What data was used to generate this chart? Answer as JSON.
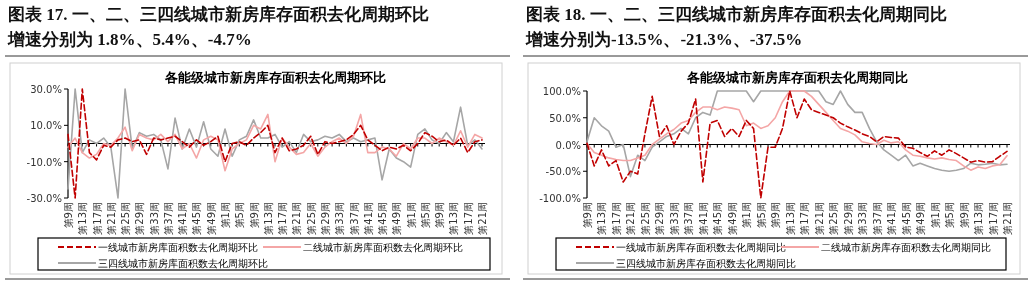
{
  "chart_data": [
    {
      "type": "line",
      "title": "图表 17. 一、二、三四线城市新房库存面积去化周期环比增速分别为 1.8%、5.4%、-4.7%",
      "subtitle": "各能级城市新房库存面积去化周期环比",
      "categories": [
        "第9周",
        null,
        "第13周",
        null,
        "第17周",
        null,
        "第21周",
        null,
        "第25周",
        null,
        "第29周",
        null,
        "第33周",
        null,
        "第37周",
        null,
        "第41周",
        null,
        "第45周",
        null,
        "第49周",
        null,
        "第1周",
        null,
        "第5周",
        null,
        "第9周",
        null,
        "第13周",
        null,
        "第17周",
        null,
        "第21周",
        null,
        "第25周",
        null,
        "第29周",
        null,
        "第33周",
        null,
        "第37周",
        null,
        "第41周",
        null,
        "第45周",
        null,
        "第49周",
        null,
        "第1周",
        null,
        "第5周",
        null,
        "第9周",
        null,
        "第13周",
        null,
        "第17周",
        null,
        "第21周"
      ],
      "series": [
        {
          "name": "一线城市新房库面积数去化周期环比",
          "color": "#c00000",
          "line_style": "dashed",
          "values": [
            5,
            -30,
            30,
            -5,
            -9,
            -1,
            -2,
            2,
            3,
            1,
            2,
            -6,
            3,
            2,
            3,
            4,
            1,
            -2,
            2,
            -1,
            1,
            4,
            -10,
            0,
            1,
            -1,
            3,
            6,
            10,
            -5,
            3,
            -4,
            -3,
            -1,
            4,
            -6,
            1,
            0,
            1,
            2,
            5,
            10,
            2,
            -1,
            -4,
            -2,
            -3,
            -1,
            -4,
            0,
            6,
            4,
            1,
            2,
            -1,
            3,
            -5,
            1,
            2
          ]
        },
        {
          "name": "二线城市新房库面积数去化周期环比",
          "color": "#f4a6a6",
          "line_style": "solid",
          "values": [
            -2,
            3,
            -5,
            -8,
            -6,
            0,
            -1,
            3,
            9,
            -4,
            5,
            3,
            2,
            5,
            1,
            5,
            -3,
            0,
            -8,
            2,
            4,
            2,
            -15,
            -3,
            0,
            2,
            10,
            8,
            16,
            -10,
            3,
            -2,
            -6,
            -5,
            0,
            -7,
            -2,
            1,
            3,
            0,
            4,
            16,
            -5,
            -5,
            -2,
            -3,
            -7,
            0,
            -3,
            3,
            3,
            0,
            3,
            1,
            -1,
            7,
            -2,
            5,
            3
          ]
        },
        {
          "name": "三四线城市新房库面积数去化周期环比",
          "color": "#a6a6a6",
          "line_style": "solid",
          "values": [
            -25,
            30,
            -5,
            2,
            0,
            3,
            -2,
            -30,
            30,
            -3,
            6,
            4,
            5,
            2,
            -14,
            14,
            -3,
            8,
            -2,
            12,
            -3,
            -7,
            8,
            -7,
            2,
            4,
            13,
            3,
            3,
            5,
            -2,
            1,
            -5,
            5,
            1,
            2,
            4,
            3,
            5,
            1,
            3,
            1,
            2,
            3,
            -20,
            -3,
            -8,
            -10,
            -13,
            5,
            8,
            2,
            0,
            6,
            1,
            20,
            -1,
            2,
            -3
          ]
        }
      ],
      "ylim": [
        -30,
        30
      ],
      "yticks": [
        {
          "value": 30,
          "label": "30.0%"
        },
        {
          "value": 10,
          "label": "10.0%"
        },
        {
          "value": -10,
          "label": "-10.0%"
        },
        {
          "value": -30,
          "label": "-30.0%"
        }
      ],
      "legend": "bottom"
    },
    {
      "type": "line",
      "title": "图表 18. 一、二、三四线城市新房库存面积去化周期同比增速分别为-13.5%、-21.3%、-37.5%",
      "subtitle": "各能级城市新房库存面积去化周期同比",
      "categories": [
        "第9周",
        null,
        "第13周",
        null,
        "第17周",
        null,
        "第21周",
        null,
        "第25周",
        null,
        "第29周",
        null,
        "第33周",
        null,
        "第37周",
        null,
        "第41周",
        null,
        "第45周",
        null,
        "第49周",
        null,
        "第1周",
        null,
        "第5周",
        null,
        "第9周",
        null,
        "第13周",
        null,
        "第17周",
        null,
        "第21周",
        null,
        "第25周",
        null,
        "第29周",
        null,
        "第33周",
        null,
        "第37周",
        null,
        "第41周",
        null,
        "第45周",
        null,
        "第49周",
        null,
        "第1周",
        null,
        "第5周",
        null,
        "第9周",
        null,
        "第13周",
        null,
        "第17周",
        null,
        "第21周"
      ],
      "series": [
        {
          "name": "一线城市新房库存面积数去化周期同比",
          "color": "#c00000",
          "line_style": "dashed",
          "values": [
            2,
            -40,
            -10,
            -40,
            -30,
            -70,
            -50,
            -55,
            20,
            90,
            15,
            35,
            0,
            25,
            40,
            85,
            -70,
            40,
            45,
            15,
            30,
            15,
            45,
            30,
            -100,
            -5,
            -5,
            30,
            100,
            50,
            85,
            65,
            60,
            55,
            50,
            40,
            33,
            27,
            20,
            15,
            5,
            15,
            13,
            12,
            -5,
            -7,
            -15,
            -22,
            -12,
            -20,
            -10,
            -17,
            -25,
            -33,
            -30,
            -33,
            -32,
            -22,
            -13
          ]
        },
        {
          "name": "二线城市新房库存面积数去化周期同比",
          "color": "#f4a6a6",
          "line_style": "solid",
          "values": [
            2,
            -15,
            -20,
            -25,
            -28,
            -30,
            -30,
            -25,
            -20,
            0,
            10,
            20,
            28,
            40,
            45,
            60,
            70,
            70,
            65,
            70,
            68,
            65,
            35,
            40,
            30,
            35,
            50,
            80,
            100,
            100,
            100,
            90,
            75,
            60,
            45,
            30,
            25,
            18,
            5,
            2,
            0,
            8,
            3,
            5,
            -10,
            -20,
            -22,
            -25,
            -27,
            -25,
            -28,
            -30,
            -40,
            -48,
            -42,
            -45,
            -40,
            -38,
            -21
          ]
        },
        {
          "name": "三四线城市新房库存面积数去化周期同比",
          "color": "#a6a6a6",
          "line_style": "solid",
          "values": [
            5,
            50,
            35,
            25,
            -5,
            0,
            -60,
            -20,
            -30,
            -5,
            5,
            15,
            20,
            30,
            20,
            50,
            60,
            55,
            100,
            100,
            100,
            100,
            100,
            80,
            100,
            100,
            100,
            100,
            100,
            100,
            100,
            100,
            100,
            80,
            75,
            100,
            75,
            60,
            60,
            30,
            5,
            -10,
            -20,
            -30,
            -20,
            -40,
            -35,
            -40,
            -45,
            -48,
            -50,
            -48,
            -45,
            -35,
            -38,
            -37,
            -35,
            -38,
            -37
          ]
        }
      ],
      "ylim": [
        -100,
        100
      ],
      "yticks": [
        {
          "value": 100,
          "label": "100.0%"
        },
        {
          "value": 50,
          "label": "50.0%"
        },
        {
          "value": 0,
          "label": "0.0%"
        },
        {
          "value": -50,
          "label": "-50.0%"
        },
        {
          "value": -100,
          "label": "-100.0%"
        }
      ],
      "legend": "bottom"
    }
  ]
}
